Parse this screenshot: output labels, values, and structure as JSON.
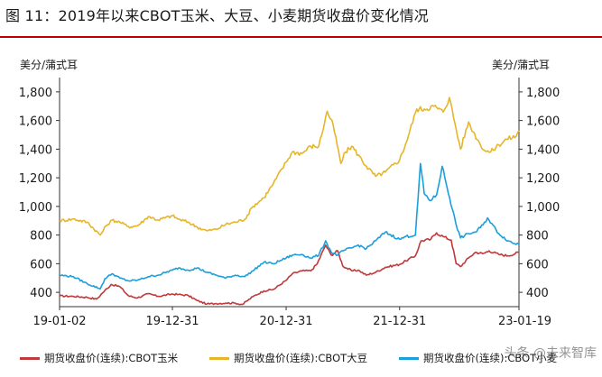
{
  "figure": {
    "title": "图 11：2019年以来CBOT玉米、大豆、小麦期货收盘价变化情况",
    "watermark": "头条 @未来智库"
  },
  "colors": {
    "title_rule": "#c00000",
    "corn": "#c0393b",
    "soybean": "#e6b52a",
    "wheat": "#1a9fdb",
    "plot_bg": "#ffffff"
  },
  "chart_data": {
    "type": "line",
    "title": "",
    "y_unit_left": "美分/蒲式耳",
    "y_unit_right": "美分/蒲式耳",
    "ylim": [
      300,
      1900
    ],
    "yticks": [
      400,
      600,
      800,
      1000,
      1200,
      1400,
      1600,
      1800
    ],
    "ytick_labels": [
      "400",
      "600",
      "800",
      "1,000",
      "1,200",
      "1,400",
      "1,600",
      "1,800"
    ],
    "xlim": [
      "2019-01-02",
      "2023-01-19"
    ],
    "xticks": [
      "2019-01-02",
      "2019-12-31",
      "2020-12-31",
      "2021-12-31",
      "2023-01-19"
    ],
    "xtick_labels": [
      "19-01-02",
      "19-12-31",
      "20-12-31",
      "21-12-31",
      "23-01-19"
    ],
    "grid": false,
    "legend_position": "bottom",
    "series": [
      {
        "name": "期货收盘价(连续):CBOT玉米",
        "color": "#c0393b",
        "points": [
          [
            "2019-01-02",
            375
          ],
          [
            "2019-02-15",
            372
          ],
          [
            "2019-04-01",
            365
          ],
          [
            "2019-05-01",
            352
          ],
          [
            "2019-05-20",
            395
          ],
          [
            "2019-06-17",
            455
          ],
          [
            "2019-07-15",
            440
          ],
          [
            "2019-08-12",
            375
          ],
          [
            "2019-09-10",
            362
          ],
          [
            "2019-10-15",
            390
          ],
          [
            "2019-11-15",
            372
          ],
          [
            "2019-12-31",
            388
          ],
          [
            "2020-01-20",
            385
          ],
          [
            "2020-02-20",
            378
          ],
          [
            "2020-03-20",
            342
          ],
          [
            "2020-04-20",
            318
          ],
          [
            "2020-05-20",
            322
          ],
          [
            "2020-06-20",
            325
          ],
          [
            "2020-07-20",
            325
          ],
          [
            "2020-08-12",
            315
          ],
          [
            "2020-09-15",
            370
          ],
          [
            "2020-10-20",
            410
          ],
          [
            "2020-11-20",
            420
          ],
          [
            "2020-12-31",
            484
          ],
          [
            "2021-01-20",
            530
          ],
          [
            "2021-02-20",
            550
          ],
          [
            "2021-03-20",
            550
          ],
          [
            "2021-04-10",
            600
          ],
          [
            "2021-05-07",
            730
          ],
          [
            "2021-05-25",
            660
          ],
          [
            "2021-06-15",
            690
          ],
          [
            "2021-07-01",
            585
          ],
          [
            "2021-07-30",
            550
          ],
          [
            "2021-08-20",
            555
          ],
          [
            "2021-09-15",
            520
          ],
          [
            "2021-10-15",
            540
          ],
          [
            "2021-11-15",
            575
          ],
          [
            "2021-12-31",
            595
          ],
          [
            "2022-01-20",
            620
          ],
          [
            "2022-02-20",
            655
          ],
          [
            "2022-03-10",
            760
          ],
          [
            "2022-04-10",
            770
          ],
          [
            "2022-04-29",
            815
          ],
          [
            "2022-05-20",
            790
          ],
          [
            "2022-06-15",
            765
          ],
          [
            "2022-07-01",
            600
          ],
          [
            "2022-07-15",
            580
          ],
          [
            "2022-08-10",
            640
          ],
          [
            "2022-09-01",
            680
          ],
          [
            "2022-09-25",
            670
          ],
          [
            "2022-10-15",
            690
          ],
          [
            "2022-11-15",
            665
          ],
          [
            "2022-12-15",
            655
          ],
          [
            "2023-01-19",
            680
          ]
        ]
      },
      {
        "name": "期货收盘价(连续):CBOT大豆",
        "color": "#e6b52a",
        "points": [
          [
            "2019-01-02",
            900
          ],
          [
            "2019-02-15",
            912
          ],
          [
            "2019-04-01",
            890
          ],
          [
            "2019-05-13",
            800
          ],
          [
            "2019-06-01",
            865
          ],
          [
            "2019-06-20",
            905
          ],
          [
            "2019-07-15",
            890
          ],
          [
            "2019-08-12",
            858
          ],
          [
            "2019-09-10",
            865
          ],
          [
            "2019-10-15",
            930
          ],
          [
            "2019-11-15",
            905
          ],
          [
            "2019-12-31",
            935
          ],
          [
            "2020-01-20",
            910
          ],
          [
            "2020-02-20",
            890
          ],
          [
            "2020-03-20",
            855
          ],
          [
            "2020-04-20",
            830
          ],
          [
            "2020-05-20",
            840
          ],
          [
            "2020-06-20",
            875
          ],
          [
            "2020-07-20",
            890
          ],
          [
            "2020-08-20",
            910
          ],
          [
            "2020-09-15",
            1000
          ],
          [
            "2020-10-20",
            1060
          ],
          [
            "2020-11-20",
            1160
          ],
          [
            "2020-12-31",
            1310
          ],
          [
            "2021-01-20",
            1380
          ],
          [
            "2021-02-20",
            1370
          ],
          [
            "2021-03-20",
            1420
          ],
          [
            "2021-04-15",
            1420
          ],
          [
            "2021-05-12",
            1665
          ],
          [
            "2021-06-01",
            1560
          ],
          [
            "2021-06-25",
            1300
          ],
          [
            "2021-07-10",
            1380
          ],
          [
            "2021-07-30",
            1420
          ],
          [
            "2021-08-20",
            1360
          ],
          [
            "2021-09-15",
            1280
          ],
          [
            "2021-10-15",
            1210
          ],
          [
            "2021-11-15",
            1240
          ],
          [
            "2021-12-31",
            1325
          ],
          [
            "2022-01-20",
            1440
          ],
          [
            "2022-02-24",
            1680
          ],
          [
            "2022-03-20",
            1680
          ],
          [
            "2022-04-20",
            1700
          ],
          [
            "2022-05-20",
            1660
          ],
          [
            "2022-06-09",
            1760
          ],
          [
            "2022-07-01",
            1540
          ],
          [
            "2022-07-15",
            1400
          ],
          [
            "2022-08-10",
            1590
          ],
          [
            "2022-08-25",
            1520
          ],
          [
            "2022-09-15",
            1440
          ],
          [
            "2022-10-01",
            1390
          ],
          [
            "2022-10-20",
            1380
          ],
          [
            "2022-11-15",
            1430
          ],
          [
            "2022-12-10",
            1470
          ],
          [
            "2023-01-10",
            1490
          ],
          [
            "2023-01-19",
            1530
          ]
        ]
      },
      {
        "name": "期货收盘价(连续):CBOT小麦",
        "color": "#1a9fdb",
        "points": [
          [
            "2019-01-02",
            520
          ],
          [
            "2019-02-15",
            510
          ],
          [
            "2019-04-01",
            460
          ],
          [
            "2019-05-13",
            425
          ],
          [
            "2019-05-28",
            495
          ],
          [
            "2019-06-20",
            530
          ],
          [
            "2019-07-15",
            500
          ],
          [
            "2019-08-12",
            480
          ],
          [
            "2019-09-10",
            485
          ],
          [
            "2019-10-15",
            510
          ],
          [
            "2019-11-15",
            520
          ],
          [
            "2019-12-31",
            555
          ],
          [
            "2020-01-20",
            570
          ],
          [
            "2020-02-20",
            555
          ],
          [
            "2020-03-20",
            570
          ],
          [
            "2020-04-20",
            540
          ],
          [
            "2020-05-20",
            520
          ],
          [
            "2020-06-20",
            500
          ],
          [
            "2020-07-20",
            520
          ],
          [
            "2020-08-20",
            510
          ],
          [
            "2020-09-15",
            550
          ],
          [
            "2020-10-20",
            610
          ],
          [
            "2020-11-20",
            600
          ],
          [
            "2020-12-31",
            640
          ],
          [
            "2021-01-20",
            660
          ],
          [
            "2021-02-20",
            665
          ],
          [
            "2021-03-20",
            640
          ],
          [
            "2021-04-15",
            660
          ],
          [
            "2021-05-07",
            760
          ],
          [
            "2021-05-25",
            680
          ],
          [
            "2021-06-15",
            660
          ],
          [
            "2021-07-01",
            690
          ],
          [
            "2021-07-30",
            710
          ],
          [
            "2021-08-20",
            730
          ],
          [
            "2021-09-15",
            705
          ],
          [
            "2021-10-15",
            760
          ],
          [
            "2021-11-15",
            820
          ],
          [
            "2021-12-31",
            770
          ],
          [
            "2022-01-20",
            790
          ],
          [
            "2022-02-20",
            800
          ],
          [
            "2022-03-08",
            1300
          ],
          [
            "2022-03-20",
            1090
          ],
          [
            "2022-04-10",
            1040
          ],
          [
            "2022-04-29",
            1080
          ],
          [
            "2022-05-17",
            1280
          ],
          [
            "2022-06-10",
            1060
          ],
          [
            "2022-06-30",
            880
          ],
          [
            "2022-07-15",
            780
          ],
          [
            "2022-08-10",
            810
          ],
          [
            "2022-09-01",
            820
          ],
          [
            "2022-09-25",
            870
          ],
          [
            "2022-10-10",
            920
          ],
          [
            "2022-11-15",
            810
          ],
          [
            "2022-12-15",
            760
          ],
          [
            "2023-01-05",
            740
          ],
          [
            "2023-01-19",
            740
          ]
        ]
      }
    ]
  }
}
